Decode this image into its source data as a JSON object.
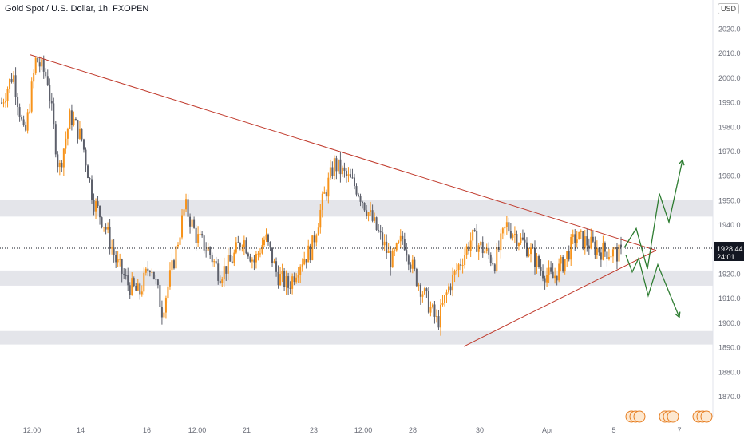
{
  "header": {
    "title": "Gold Spot / U.S. Dollar, 1h, FXOPEN",
    "currency": "USD"
  },
  "price_label": {
    "value": "1928.44",
    "countdown": "24:01",
    "color": "#131722"
  },
  "colors": {
    "bull": "#f7931a",
    "bear": "#5d606b",
    "trendline": "#c0392b",
    "projection": "#2e7d32",
    "zone": "#e4e5ea",
    "axis_text": "#6a6d78"
  },
  "event_icons": [
    "flag-icon",
    "flag-icon",
    "flag-icon"
  ],
  "chart_data": {
    "type": "candlestick",
    "title": "Gold Spot / U.S. Dollar, 1h, FXOPEN",
    "y_axis": {
      "ticks": [
        1870,
        1880,
        1890,
        1900,
        1910,
        1920,
        1930,
        1940,
        1950,
        1960,
        1970,
        1980,
        1990,
        2000,
        2010,
        2020
      ],
      "range": [
        1867,
        2024
      ],
      "position": "right"
    },
    "x_axis": {
      "ticks": [
        "12:00",
        "14",
        "16",
        "12:00",
        "21",
        "23",
        "12:00",
        "28",
        "30",
        "Apr",
        "5",
        "7"
      ]
    },
    "current_price": 1928.44,
    "support_zones": [
      [
        1943.5,
        1950.2
      ],
      [
        1915.3,
        1921.5
      ],
      [
        1891.3,
        1896.8
      ]
    ],
    "trendlines": [
      {
        "name": "descending",
        "from": {
          "x": "12:00",
          "y": 2009.5
        },
        "to": {
          "x": "apex",
          "y": 1929.7
        }
      },
      {
        "name": "ascending",
        "from": {
          "x": "29",
          "y": 1890.5
        },
        "to": {
          "x": "apex",
          "y": 1929.7
        }
      }
    ],
    "projections": [
      {
        "name": "bullish",
        "path": [
          1930.8,
          1938.6,
          1922.1,
          1952.9,
          1941.2,
          1966.6
        ]
      },
      {
        "name": "bearish",
        "path": [
          1927.8,
          1920.9,
          1926.5,
          1911.2,
          1923.9,
          1902.4
        ]
      }
    ],
    "price_path": [
      1990,
      2002,
      1975,
      2008,
      2000,
      1962,
      1985,
      1975,
      1950,
      1940,
      1925,
      1916,
      1912,
      1925,
      1905,
      1925,
      1948,
      1935,
      1930,
      1920,
      1925,
      1935,
      1925,
      1935,
      1920,
      1915,
      1925,
      1930,
      1950,
      1965,
      1960,
      1955,
      1945,
      1935,
      1925,
      1935,
      1920,
      1910,
      1900,
      1915,
      1925,
      1935,
      1930,
      1925,
      1940,
      1935,
      1930,
      1922,
      1918,
      1925,
      1935,
      1933,
      1930,
      1929,
      1928
    ]
  }
}
